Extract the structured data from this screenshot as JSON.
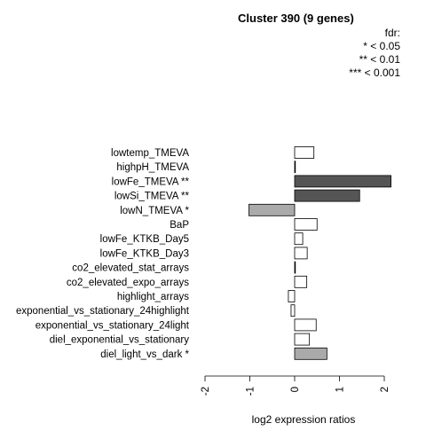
{
  "title": "Cluster 390 (9 genes)",
  "legend": {
    "heading": "fdr:",
    "items": [
      "* < 0.05",
      "** < 0.01",
      "*** < 0.001"
    ]
  },
  "chart_data": {
    "type": "bar",
    "orientation": "horizontal",
    "title": "Cluster 390 (9 genes)",
    "xlabel": "log2 expression ratios",
    "ylabel": "",
    "xlim": [
      -2,
      2
    ],
    "xticks": [
      "-2",
      "-1",
      "0",
      "1",
      "2"
    ],
    "categories": [
      "lowtemp_TMEVA",
      "highpH_TMEVA",
      "lowFe_TMEVA **",
      "lowSi_TMEVA **",
      "lowN_TMEVA *",
      "BaP",
      "lowFe_KTKB_Day5",
      "lowFe_KTKB_Day3",
      "co2_elevated_stat_arrays",
      "co2_elevated_expo_arrays",
      "highlight_arrays",
      "exponential_vs_stationary_24highlight",
      "exponential_vs_stationary_24light",
      "diel_exponential_vs_stationary",
      "diel_light_vs_dark *"
    ],
    "values": [
      0.43,
      0.0,
      2.15,
      1.45,
      -1.02,
      0.5,
      0.18,
      0.28,
      0.01,
      0.27,
      -0.14,
      -0.08,
      0.48,
      0.33,
      0.72
    ],
    "bar_colors": [
      "#ffffff",
      "#ffffff",
      "#555555",
      "#555555",
      "#aaaaaa",
      "#ffffff",
      "#ffffff",
      "#ffffff",
      "#ffffff",
      "#ffffff",
      "#ffffff",
      "#ffffff",
      "#ffffff",
      "#ffffff",
      "#aaaaaa"
    ]
  }
}
